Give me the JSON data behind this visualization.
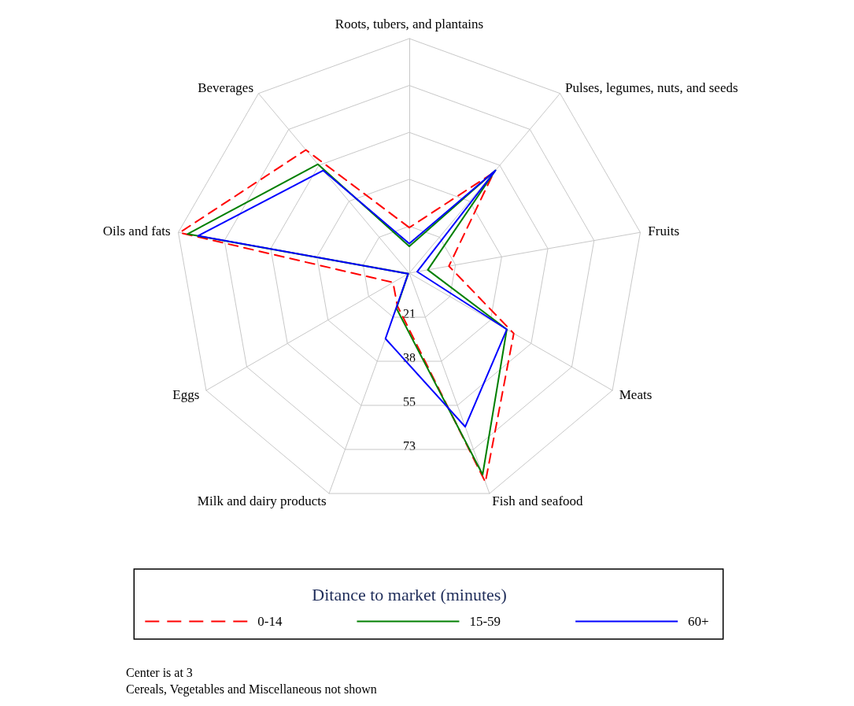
{
  "chart_data": {
    "type": "radar",
    "categories": [
      "Roots, tubers, and plantains",
      "Pulses, legumes, nuts, and seeds",
      "Fruits",
      "Meats",
      "Fish and seafood",
      "Milk and dairy products",
      "Eggs",
      "Oils and fats",
      "Beverages"
    ],
    "series": [
      {
        "name": "0-14",
        "color": "#ff0000",
        "line_style": "dashed",
        "values": [
          20,
          52,
          18,
          48,
          86,
          16,
          10,
          90,
          63
        ]
      },
      {
        "name": "15-59",
        "color": "#007f00",
        "values": [
          13,
          53,
          10,
          45,
          83,
          17,
          3.5,
          87,
          56
        ]
      },
      {
        "name": "60+",
        "color": "#0000ff",
        "values": [
          14,
          53,
          6,
          45,
          64,
          29,
          3.5,
          83,
          53
        ]
      }
    ],
    "ylim": [
      3,
      90.5
    ],
    "yticks": [
      {
        "value": 20.5,
        "label": "21"
      },
      {
        "value": 38,
        "label": "38"
      },
      {
        "value": 55.5,
        "label": "55"
      },
      {
        "value": 73,
        "label": "73"
      }
    ],
    "grid": true,
    "marker": "none",
    "line_style": "solid",
    "legend": "bottom",
    "legend_title": "Ditance to market (minutes)",
    "annotations": [
      "Center is at 3",
      "Cereals, Vegetables and Miscellaneous not shown"
    ]
  }
}
